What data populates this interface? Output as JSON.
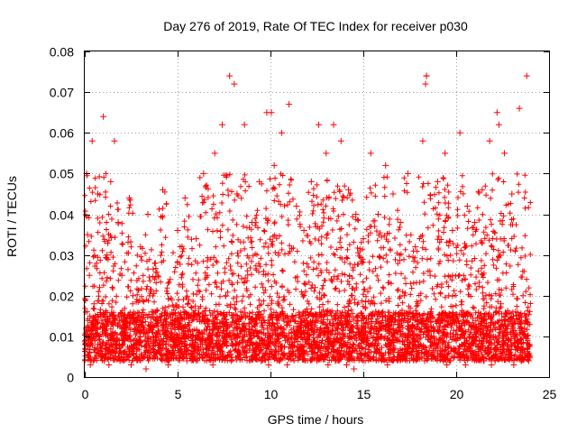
{
  "chart_data": {
    "type": "scatter",
    "title": "Day 276 of 2019, Rate Of TEC Index for receiver p030",
    "xlabel": "GPS time / hours",
    "ylabel": "ROTI / TECUs",
    "xlim": [
      0,
      25
    ],
    "ylim": [
      0,
      0.08
    ],
    "xticks": [
      0,
      5,
      10,
      15,
      20,
      25
    ],
    "yticks": [
      0,
      0.01,
      0.02,
      0.03,
      0.04,
      0.05,
      0.06,
      0.07,
      0.08
    ],
    "xtick_labels": [
      "0",
      "5",
      "10",
      "15",
      "20",
      "25"
    ],
    "ytick_labels": [
      "0",
      "0.01",
      "0.02",
      "0.03",
      "0.04",
      "0.05",
      "0.06",
      "0.07",
      "0.08"
    ],
    "grid": true,
    "marker": "+",
    "color": "#ff0000",
    "series": [
      {
        "name": "ROTI",
        "x": [
          0.05,
          0.1,
          0.15,
          0.2,
          0.25,
          0.3,
          0.4,
          0.5,
          0.6,
          0.7,
          0.8,
          1.0,
          1.1,
          1.2,
          1.4,
          1.5,
          1.6,
          1.7,
          1.8,
          2.0,
          2.2,
          2.4,
          2.6,
          2.8,
          3.0,
          3.2,
          3.4,
          3.6,
          3.8,
          4.0,
          4.2,
          4.4,
          4.6,
          4.8,
          5.0,
          5.2,
          5.4,
          5.6,
          5.8,
          6.0,
          6.2,
          6.4,
          6.6,
          6.8,
          7.0,
          7.2,
          7.4,
          7.6,
          7.8,
          8.0,
          8.2,
          8.4,
          8.6,
          8.8,
          9.0,
          9.2,
          9.4,
          9.6,
          9.8,
          10.0,
          10.2,
          10.4,
          10.6,
          10.8,
          11.0,
          11.2,
          11.4,
          11.6,
          11.8,
          12.0,
          12.2,
          12.4,
          12.6,
          12.8,
          13.0,
          13.2,
          13.4,
          13.6,
          13.8,
          14.0,
          14.2,
          14.4,
          14.6,
          14.8,
          15.0,
          15.2,
          15.4,
          15.6,
          15.8,
          16.0,
          16.2,
          16.4,
          16.6,
          16.8,
          17.0,
          17.2,
          17.4,
          17.6,
          17.8,
          18.0,
          18.2,
          18.4,
          18.6,
          18.8,
          19.0,
          19.2,
          19.4,
          19.6,
          19.8,
          20.0,
          20.2,
          20.4,
          20.6,
          20.8,
          21.0,
          21.2,
          21.4,
          21.6,
          21.8,
          22.0,
          22.2,
          22.4,
          22.6,
          22.8,
          23.0,
          23.2,
          23.4,
          23.6,
          23.8,
          23.95,
          0.3,
          0.45,
          0.9,
          1.05,
          1.3,
          1.9,
          2.1,
          2.5,
          3.3,
          4.5,
          5.5,
          6.9,
          7.3,
          7.9,
          8.05,
          8.7,
          9.5,
          9.9,
          10.05,
          10.5,
          10.9,
          11.05,
          12.5,
          13.1,
          13.5,
          14.1,
          14.5,
          15.1,
          16.3,
          16.9,
          18.3,
          18.35,
          18.4,
          19.3,
          19.5,
          19.7,
          20.1,
          20.5,
          21.5,
          21.9,
          22.1,
          22.3,
          23.1,
          23.5,
          23.7,
          23.9
        ],
        "y": [
          0.009,
          0.05,
          0.035,
          0.012,
          0.025,
          0.008,
          0.058,
          0.018,
          0.01,
          0.045,
          0.022,
          0.064,
          0.011,
          0.03,
          0.048,
          0.015,
          0.058,
          0.009,
          0.038,
          0.025,
          0.012,
          0.044,
          0.02,
          0.008,
          0.032,
          0.011,
          0.04,
          0.016,
          0.028,
          0.009,
          0.046,
          0.013,
          0.024,
          0.008,
          0.036,
          0.012,
          0.044,
          0.019,
          0.009,
          0.034,
          0.015,
          0.05,
          0.025,
          0.008,
          0.055,
          0.012,
          0.062,
          0.02,
          0.074,
          0.01,
          0.045,
          0.016,
          0.062,
          0.009,
          0.038,
          0.014,
          0.048,
          0.022,
          0.065,
          0.01,
          0.052,
          0.018,
          0.06,
          0.009,
          0.067,
          0.015,
          0.042,
          0.008,
          0.036,
          0.012,
          0.048,
          0.022,
          0.062,
          0.009,
          0.055,
          0.016,
          0.062,
          0.012,
          0.058,
          0.008,
          0.046,
          0.02,
          0.04,
          0.011,
          0.034,
          0.009,
          0.055,
          0.018,
          0.04,
          0.01,
          0.052,
          0.015,
          0.045,
          0.009,
          0.038,
          0.02,
          0.05,
          0.012,
          0.032,
          0.008,
          0.058,
          0.074,
          0.025,
          0.01,
          0.048,
          0.014,
          0.055,
          0.02,
          0.036,
          0.009,
          0.06,
          0.015,
          0.042,
          0.008,
          0.038,
          0.012,
          0.046,
          0.02,
          0.058,
          0.01,
          0.065,
          0.018,
          0.055,
          0.009,
          0.045,
          0.016,
          0.066,
          0.02,
          0.074,
          0.008,
          0.003,
          0.004,
          0.005,
          0.004,
          0.003,
          0.004,
          0.005,
          0.003,
          0.002,
          0.003,
          0.004,
          0.003,
          0.005,
          0.004,
          0.072,
          0.006,
          0.004,
          0.003,
          0.065,
          0.004,
          0.003,
          0.005,
          0.004,
          0.003,
          0.004,
          0.003,
          0.002,
          0.004,
          0.003,
          0.005,
          0.004,
          0.072,
          0.074,
          0.004,
          0.003,
          0.004,
          0.005,
          0.003,
          0.004,
          0.003,
          0.004,
          0.062,
          0.003,
          0.004,
          0.005,
          0.004
        ]
      }
    ]
  }
}
